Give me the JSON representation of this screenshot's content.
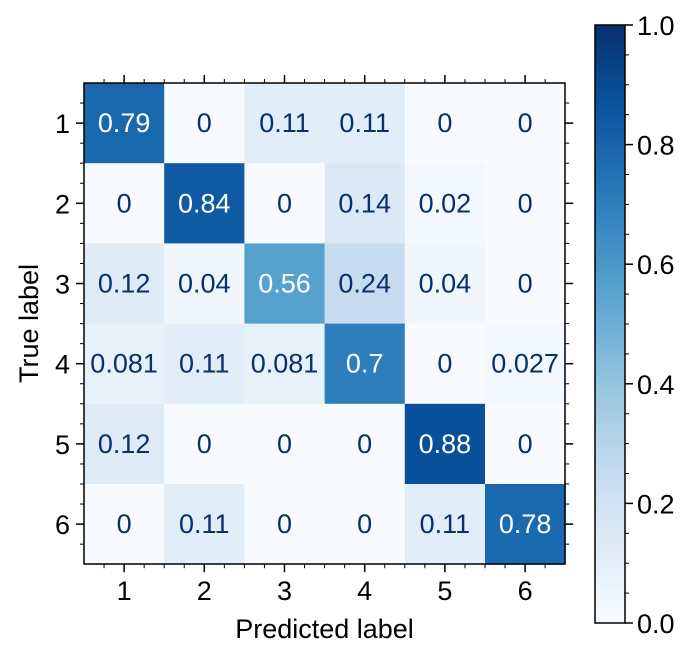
{
  "chart_data": {
    "type": "heatmap",
    "title": "",
    "xlabel": "Predicted label",
    "ylabel": "True label",
    "x_categories": [
      "1",
      "2",
      "3",
      "4",
      "5",
      "6"
    ],
    "y_categories": [
      "1",
      "2",
      "3",
      "4",
      "5",
      "6"
    ],
    "values": [
      [
        0.79,
        0,
        0.11,
        0.11,
        0,
        0
      ],
      [
        0,
        0.84,
        0,
        0.14,
        0.02,
        0
      ],
      [
        0.12,
        0.04,
        0.56,
        0.24,
        0.04,
        0
      ],
      [
        0.081,
        0.11,
        0.081,
        0.7,
        0,
        0.027
      ],
      [
        0.12,
        0,
        0,
        0,
        0.88,
        0
      ],
      [
        0,
        0.11,
        0,
        0,
        0.11,
        0.78
      ]
    ],
    "cell_labels": [
      [
        "0.79",
        "0",
        "0.11",
        "0.11",
        "0",
        "0"
      ],
      [
        "0",
        "0.84",
        "0",
        "0.14",
        "0.02",
        "0"
      ],
      [
        "0.12",
        "0.04",
        "0.56",
        "0.24",
        "0.04",
        "0"
      ],
      [
        "0.081",
        "0.11",
        "0.081",
        "0.7",
        "0",
        "0.027"
      ],
      [
        "0.12",
        "0",
        "0",
        "0",
        "0.88",
        "0"
      ],
      [
        "0",
        "0.11",
        "0",
        "0",
        "0.11",
        "0.78"
      ]
    ],
    "colorbar": {
      "range": [
        0.0,
        1.0
      ],
      "ticks": [
        "0.0",
        "0.2",
        "0.4",
        "0.6",
        "0.8",
        "1.0"
      ],
      "colormap": "Blues",
      "color_low": "#f7fbff",
      "color_high": "#08306b"
    },
    "grid": false
  }
}
